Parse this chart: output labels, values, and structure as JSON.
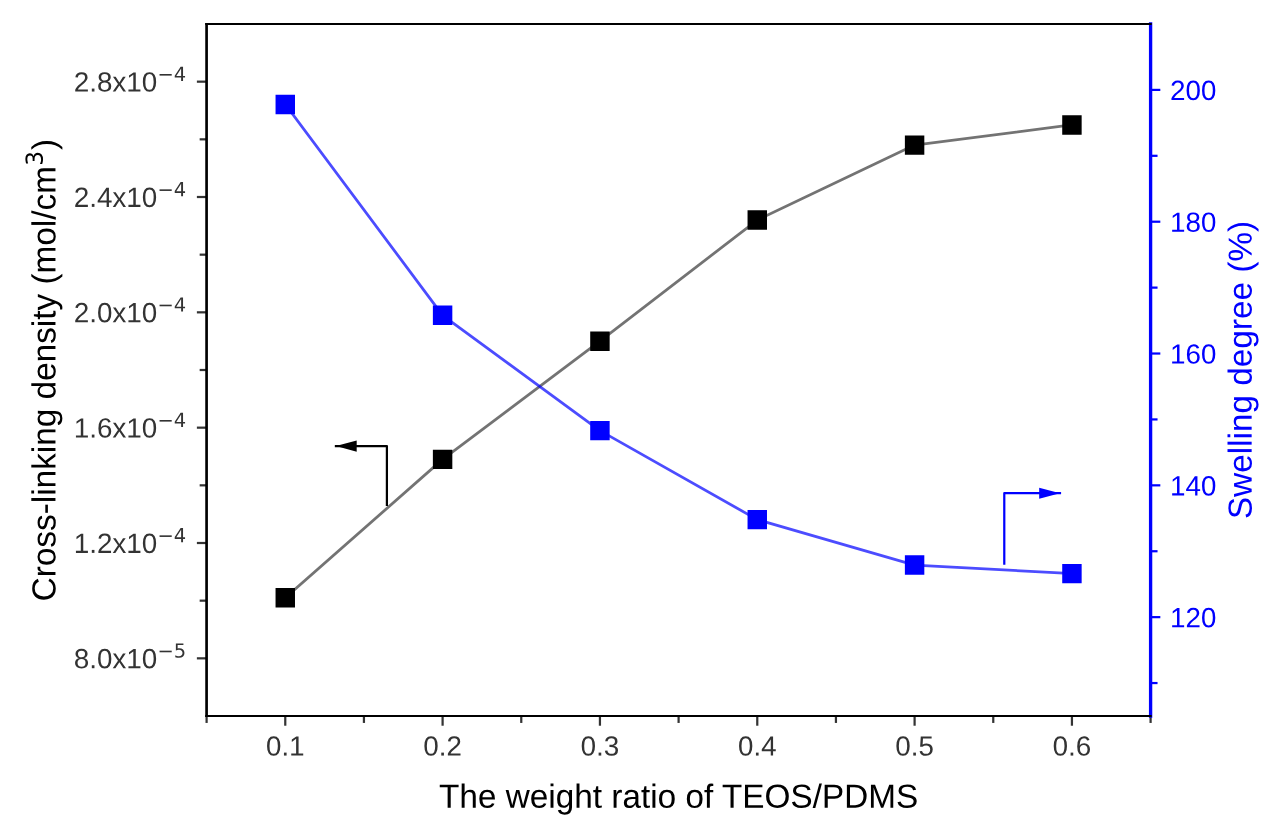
{
  "chart_data": {
    "type": "line",
    "xlabel": "The weight ratio of TEOS/PDMS",
    "ylabel": "Cross-linking density (mol/cm$^{3}$)",
    "y2label": "Swelling degree (%)",
    "x": [
      0.1,
      0.2,
      0.3,
      0.4,
      0.5,
      0.6
    ],
    "series": [
      {
        "color": "#000000",
        "values": [
          0.000101,
          0.000149,
          0.00019,
          0.000232,
          0.000258,
          0.000265
        ]
      },
      {
        "color": "#0000ff",
        "axis": "y2",
        "values": [
          197.8,
          165.8,
          148.3,
          134.8,
          127.9,
          126.6
        ]
      }
    ],
    "marker": "square",
    "line_style": "solid",
    "grid": false,
    "legend": false,
    "xlim": [
      0.05,
      0.65
    ],
    "xticks": [
      {
        "value": 0.05,
        "label": null
      },
      0.1,
      {
        "value": 0.15,
        "label": null
      },
      0.2,
      {
        "value": 0.25,
        "label": null
      },
      0.3,
      {
        "value": 0.35,
        "label": null
      },
      0.4,
      {
        "value": 0.45,
        "label": null
      },
      0.5,
      {
        "value": 0.55,
        "label": null
      },
      0.6,
      {
        "value": 0.65,
        "label": null
      }
    ],
    "ylim": [
      6e-05,
      0.0003
    ],
    "yticks": [
      {
        "value": 8e-05,
        "label": "8.0x10$^{−5}$"
      },
      {
        "value": 0.0001,
        "label": null
      },
      {
        "value": 0.00012,
        "label": "1.2x10$^{−4}$"
      },
      {
        "value": 0.00014,
        "label": null
      },
      {
        "value": 0.00016,
        "label": "1.6x10$^{−4}$"
      },
      {
        "value": 0.00018,
        "label": null
      },
      {
        "value": 0.0002,
        "label": "2.0x10$^{−4}$"
      },
      {
        "value": 0.00022,
        "label": null
      },
      {
        "value": 0.00024,
        "label": "2.4x10$^{−4}$"
      },
      {
        "value": 0.00026,
        "label": null
      },
      {
        "value": 0.00028,
        "label": "2.8x10$^{−4}$"
      }
    ],
    "y2lim": [
      105,
      210
    ],
    "y2ticks": [
      {
        "value": 110,
        "label": null
      },
      120,
      {
        "value": 130,
        "label": null
      },
      140,
      {
        "value": 150,
        "label": null
      },
      160,
      {
        "value": 170,
        "label": null
      },
      180,
      {
        "value": 190,
        "label": null
      },
      200
    ]
  }
}
